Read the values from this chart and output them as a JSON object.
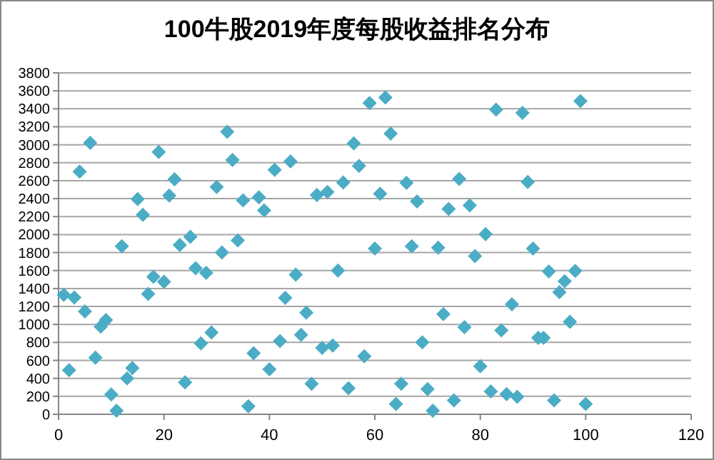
{
  "chart_data": {
    "type": "scatter",
    "title": "100牛股2019年度每股收益排名分布",
    "x": [
      1,
      2,
      3,
      4,
      5,
      6,
      7,
      8,
      9,
      10,
      11,
      12,
      13,
      14,
      15,
      16,
      17,
      18,
      19,
      20,
      21,
      22,
      23,
      24,
      25,
      26,
      27,
      28,
      29,
      30,
      31,
      32,
      33,
      34,
      35,
      36,
      37,
      38,
      39,
      40,
      41,
      42,
      43,
      44,
      45,
      46,
      47,
      48,
      49,
      50,
      51,
      52,
      53,
      54,
      55,
      56,
      57,
      58,
      59,
      60,
      61,
      62,
      63,
      64,
      65,
      66,
      67,
      68,
      69,
      70,
      71,
      72,
      73,
      74,
      75,
      76,
      77,
      78,
      79,
      80,
      81,
      82,
      83,
      84,
      85,
      86,
      87,
      88,
      89,
      90,
      91,
      92,
      93,
      94,
      95,
      96,
      97,
      98,
      99,
      100
    ],
    "series": [
      {
        "color": "#4bacc6",
        "values": [
          1330,
          490,
          1300,
          2700,
          1145,
          3020,
          630,
          975,
          1050,
          220,
          40,
          1870,
          400,
          515,
          2395,
          2220,
          1340,
          1530,
          2920,
          1475,
          2435,
          2615,
          1885,
          355,
          1975,
          1625,
          790,
          1575,
          910,
          2530,
          1800,
          3145,
          2830,
          1935,
          2380,
          90,
          680,
          2415,
          2270,
          500,
          2720,
          815,
          1295,
          2815,
          1555,
          885,
          1130,
          340,
          2440,
          740,
          2475,
          765,
          1600,
          2580,
          290,
          3015,
          2765,
          645,
          3465,
          1845,
          2455,
          3525,
          3125,
          115,
          340,
          2575,
          1870,
          2370,
          800,
          280,
          40,
          1855,
          1115,
          2285,
          155,
          2620,
          970,
          2325,
          1760,
          535,
          2005,
          255,
          3390,
          935,
          225,
          1225,
          195,
          3355,
          2585,
          1845,
          850,
          850,
          1590,
          155,
          1360,
          1480,
          1030,
          1595,
          3485,
          115
        ]
      }
    ],
    "xlim": [
      0,
      120
    ],
    "xticks": [
      0,
      20,
      40,
      60,
      80,
      100,
      120
    ],
    "ylim": [
      0,
      3800
    ],
    "yticks": [
      0,
      200,
      400,
      600,
      800,
      1000,
      1200,
      1400,
      1600,
      1800,
      2000,
      2200,
      2400,
      2600,
      2800,
      3000,
      3200,
      3400,
      3600,
      3800
    ],
    "grid": "y",
    "marker": "diamond"
  }
}
